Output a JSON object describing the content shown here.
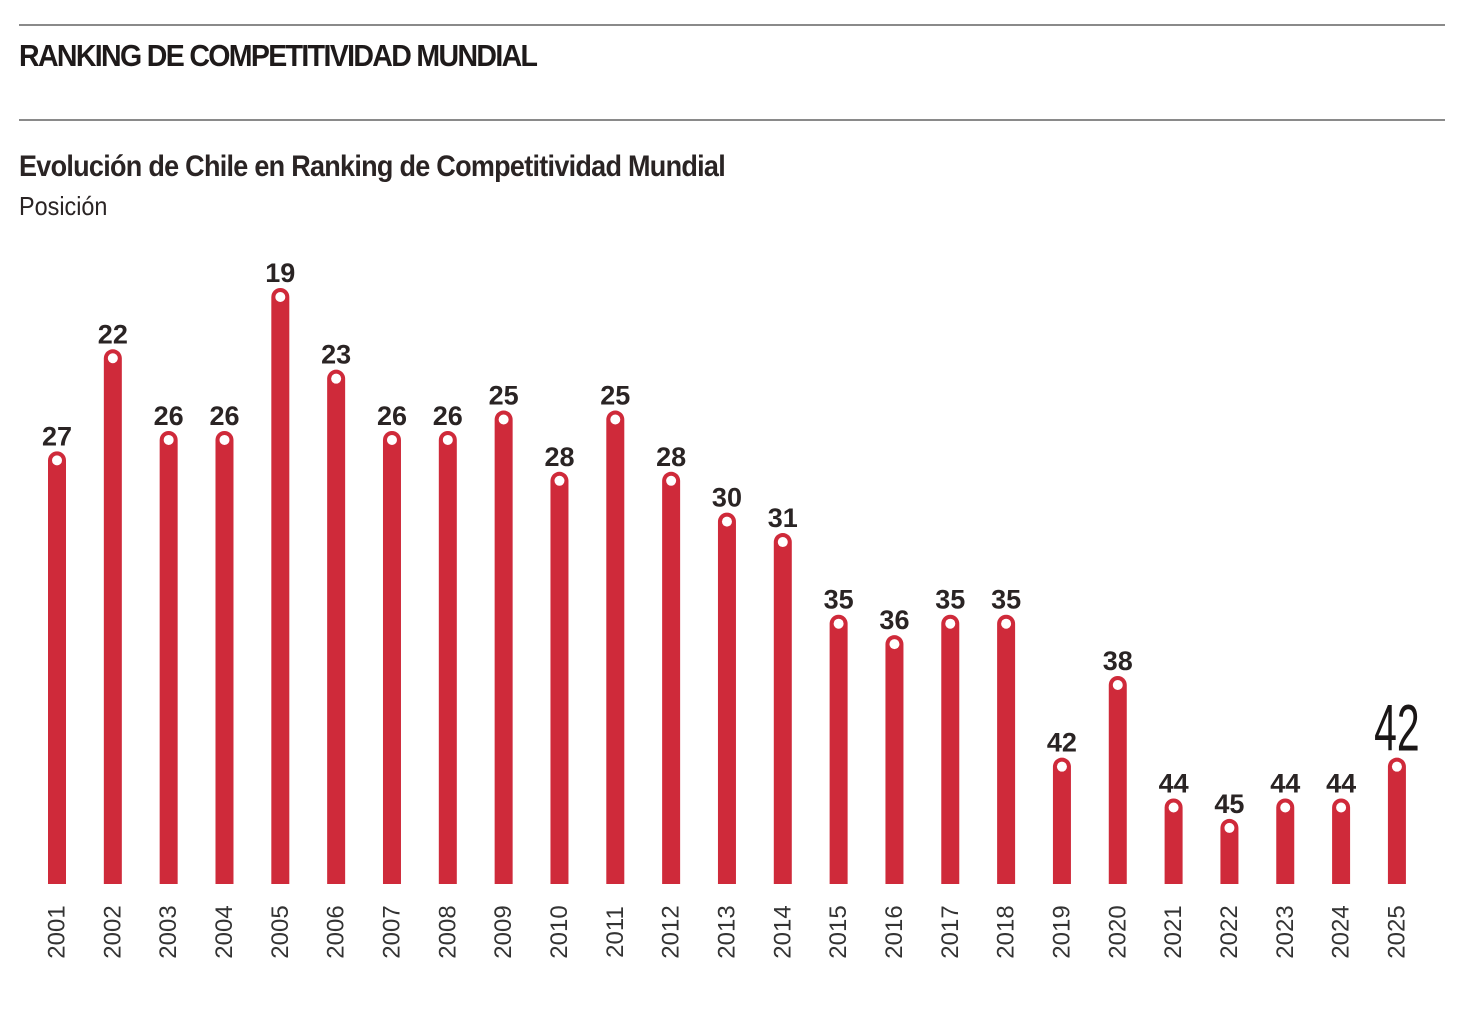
{
  "header": {
    "section_title": "RANKING DE COMPETITIVIDAD MUNDIAL"
  },
  "colors": {
    "bar": "#cf2a3a",
    "text": "#2a2424",
    "rule": "#8a8a8a",
    "dot": "#ffffff"
  },
  "chart_data": {
    "type": "bar",
    "title": "Evolución de Chile en Ranking de Competitividad Mundial",
    "subtitle": "Posición",
    "xlabel": "",
    "ylabel": "Posición",
    "y_inverted": true,
    "grid": false,
    "legend": "none",
    "categories": [
      "2001",
      "2002",
      "2003",
      "2004",
      "2005",
      "2006",
      "2007",
      "2008",
      "2009",
      "2010",
      "2011",
      "2012",
      "2013",
      "2014",
      "2015",
      "2016",
      "2017",
      "2018",
      "2019",
      "2020",
      "2021",
      "2022",
      "2023",
      "2024",
      "2025"
    ],
    "values": [
      27,
      22,
      26,
      26,
      19,
      23,
      26,
      26,
      25,
      28,
      25,
      28,
      30,
      31,
      35,
      36,
      35,
      35,
      42,
      38,
      44,
      45,
      44,
      44,
      42
    ],
    "highlight": {
      "category": "2025",
      "label": "42"
    }
  }
}
